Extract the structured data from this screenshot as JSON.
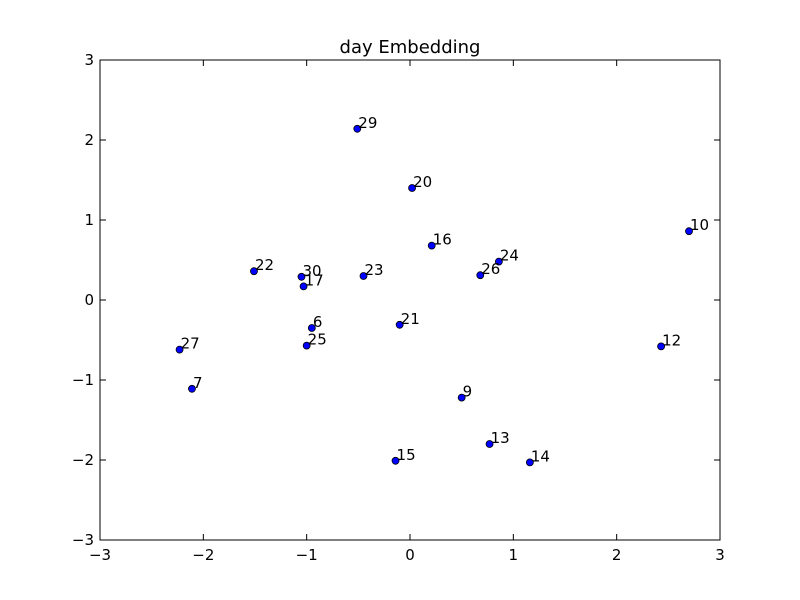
{
  "chart_data": {
    "type": "scatter",
    "title": "day Embedding",
    "xlabel": "",
    "ylabel": "",
    "xlim": [
      -3,
      3
    ],
    "ylim": [
      -3,
      3
    ],
    "xticks": [
      -3,
      -2,
      -1,
      0,
      1,
      2,
      3
    ],
    "yticks": [
      -3,
      -2,
      -1,
      0,
      1,
      2,
      3
    ],
    "xtick_labels": [
      "−3",
      "−2",
      "−1",
      "0",
      "1",
      "2",
      "3"
    ],
    "ytick_labels": [
      "−3",
      "−2",
      "−1",
      "0",
      "1",
      "2",
      "3"
    ],
    "grid": false,
    "marker_color": "#0000ff",
    "marker_edge_color": "#000000",
    "points": [
      {
        "label": "29",
        "x": -0.51,
        "y": 2.14
      },
      {
        "label": "20",
        "x": 0.02,
        "y": 1.4
      },
      {
        "label": "10",
        "x": 2.7,
        "y": 0.86
      },
      {
        "label": "16",
        "x": 0.21,
        "y": 0.68
      },
      {
        "label": "24",
        "x": 0.86,
        "y": 0.48
      },
      {
        "label": "22",
        "x": -1.51,
        "y": 0.36
      },
      {
        "label": "30",
        "x": -1.05,
        "y": 0.29
      },
      {
        "label": "23",
        "x": -0.45,
        "y": 0.3
      },
      {
        "label": "26",
        "x": 0.68,
        "y": 0.31
      },
      {
        "label": "17",
        "x": -1.03,
        "y": 0.17
      },
      {
        "label": "6",
        "x": -0.95,
        "y": -0.35
      },
      {
        "label": "21",
        "x": -0.1,
        "y": -0.31
      },
      {
        "label": "25",
        "x": -1.0,
        "y": -0.57
      },
      {
        "label": "12",
        "x": 2.43,
        "y": -0.58
      },
      {
        "label": "27",
        "x": -2.23,
        "y": -0.62
      },
      {
        "label": "7",
        "x": -2.11,
        "y": -1.11
      },
      {
        "label": "9",
        "x": 0.5,
        "y": -1.22
      },
      {
        "label": "13",
        "x": 0.77,
        "y": -1.8
      },
      {
        "label": "15",
        "x": -0.14,
        "y": -2.01
      },
      {
        "label": "14",
        "x": 1.16,
        "y": -2.03
      }
    ]
  }
}
